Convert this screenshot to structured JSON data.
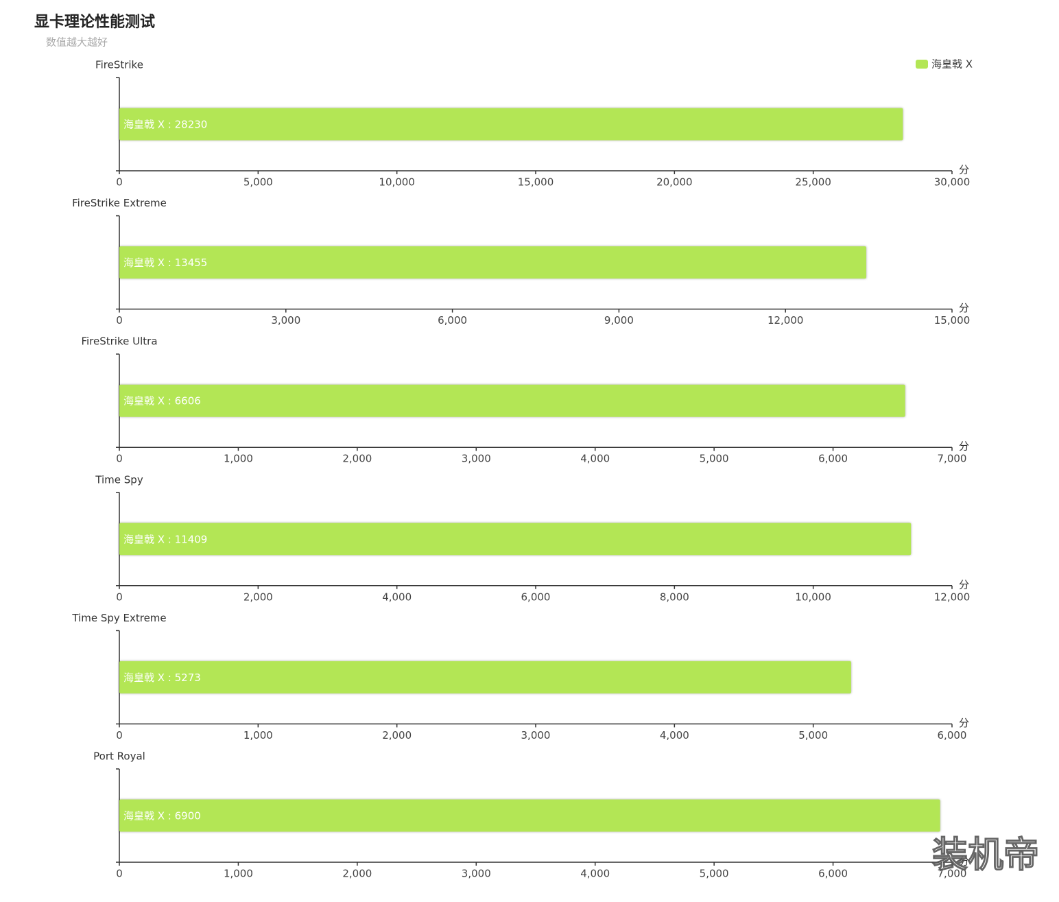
{
  "header": {
    "title": "显卡理论性能测试",
    "subtitle": "数值越大越好",
    "watermark": "装机帝"
  },
  "chart_data": [
    {
      "type": "bar",
      "orientation": "horizontal",
      "title": "FireStrike",
      "x_label": "分",
      "categories": [
        null
      ],
      "series": [
        {
          "name": "海皇戟 X",
          "color": "#b3e655",
          "values": [
            28230
          ],
          "value_labels": [
            "海皇戟 X : 28230"
          ]
        }
      ],
      "xlim": [
        0,
        30000
      ],
      "xticks": [
        0,
        {
          "value": 5000,
          "label": "5,000"
        },
        {
          "value": 10000,
          "label": "10,000"
        },
        {
          "value": 15000,
          "label": "15,000"
        },
        {
          "value": 20000,
          "label": "20,000"
        },
        {
          "value": 25000,
          "label": "25,000"
        },
        {
          "value": 30000,
          "label": "30,000"
        }
      ],
      "legend": "top-right"
    },
    {
      "type": "bar",
      "orientation": "horizontal",
      "title": "FireStrike Extreme",
      "x_label": "分",
      "categories": [
        null
      ],
      "series": [
        {
          "name": "海皇戟 X",
          "color": "#b3e655",
          "values": [
            13455
          ],
          "value_labels": [
            "海皇戟 X : 13455"
          ]
        }
      ],
      "xlim": [
        0,
        15000
      ],
      "xticks": [
        0,
        {
          "value": 3000,
          "label": "3,000"
        },
        {
          "value": 6000,
          "label": "6,000"
        },
        {
          "value": 9000,
          "label": "9,000"
        },
        {
          "value": 12000,
          "label": "12,000"
        },
        {
          "value": 15000,
          "label": "15,000"
        }
      ]
    },
    {
      "type": "bar",
      "orientation": "horizontal",
      "title": "FireStrike Ultra",
      "x_label": "分",
      "categories": [
        null
      ],
      "series": [
        {
          "name": "海皇戟 X",
          "color": "#b3e655",
          "values": [
            6606
          ],
          "value_labels": [
            "海皇戟 X : 6606"
          ]
        }
      ],
      "xlim": [
        0,
        7000
      ],
      "xticks": [
        0,
        {
          "value": 1000,
          "label": "1,000"
        },
        {
          "value": 2000,
          "label": "2,000"
        },
        {
          "value": 3000,
          "label": "3,000"
        },
        {
          "value": 4000,
          "label": "4,000"
        },
        {
          "value": 5000,
          "label": "5,000"
        },
        {
          "value": 6000,
          "label": "6,000"
        },
        {
          "value": 7000,
          "label": "7,000"
        }
      ]
    },
    {
      "type": "bar",
      "orientation": "horizontal",
      "title": "Time Spy",
      "x_label": "分",
      "categories": [
        null
      ],
      "series": [
        {
          "name": "海皇戟 X",
          "color": "#b3e655",
          "values": [
            11409
          ],
          "value_labels": [
            "海皇戟 X : 11409"
          ]
        }
      ],
      "xlim": [
        0,
        12000
      ],
      "xticks": [
        0,
        {
          "value": 2000,
          "label": "2,000"
        },
        {
          "value": 4000,
          "label": "4,000"
        },
        {
          "value": 6000,
          "label": "6,000"
        },
        {
          "value": 8000,
          "label": "8,000"
        },
        {
          "value": 10000,
          "label": "10,000"
        },
        {
          "value": 12000,
          "label": "12,000"
        }
      ]
    },
    {
      "type": "bar",
      "orientation": "horizontal",
      "title": "Time Spy Extreme",
      "x_label": "分",
      "categories": [
        null
      ],
      "series": [
        {
          "name": "海皇戟 X",
          "color": "#b3e655",
          "values": [
            5273
          ],
          "value_labels": [
            "海皇戟 X : 5273"
          ]
        }
      ],
      "xlim": [
        0,
        6000
      ],
      "xticks": [
        0,
        {
          "value": 1000,
          "label": "1,000"
        },
        {
          "value": 2000,
          "label": "2,000"
        },
        {
          "value": 3000,
          "label": "3,000"
        },
        {
          "value": 4000,
          "label": "4,000"
        },
        {
          "value": 5000,
          "label": "5,000"
        },
        {
          "value": 6000,
          "label": "6,000"
        }
      ]
    },
    {
      "type": "bar",
      "orientation": "horizontal",
      "title": "Port Royal",
      "x_label": "分",
      "categories": [
        null
      ],
      "series": [
        {
          "name": "海皇戟 X",
          "color": "#b3e655",
          "values": [
            6900
          ],
          "value_labels": [
            "海皇戟 X : 6900"
          ]
        }
      ],
      "xlim": [
        0,
        7000
      ],
      "xticks": [
        0,
        {
          "value": 1000,
          "label": "1,000"
        },
        {
          "value": 2000,
          "label": "2,000"
        },
        {
          "value": 3000,
          "label": "3,000"
        },
        {
          "value": 4000,
          "label": "4,000"
        },
        {
          "value": 5000,
          "label": "5,000"
        },
        {
          "value": 6000,
          "label": "6,000"
        },
        {
          "value": 7000,
          "label": "7,000"
        }
      ]
    }
  ]
}
